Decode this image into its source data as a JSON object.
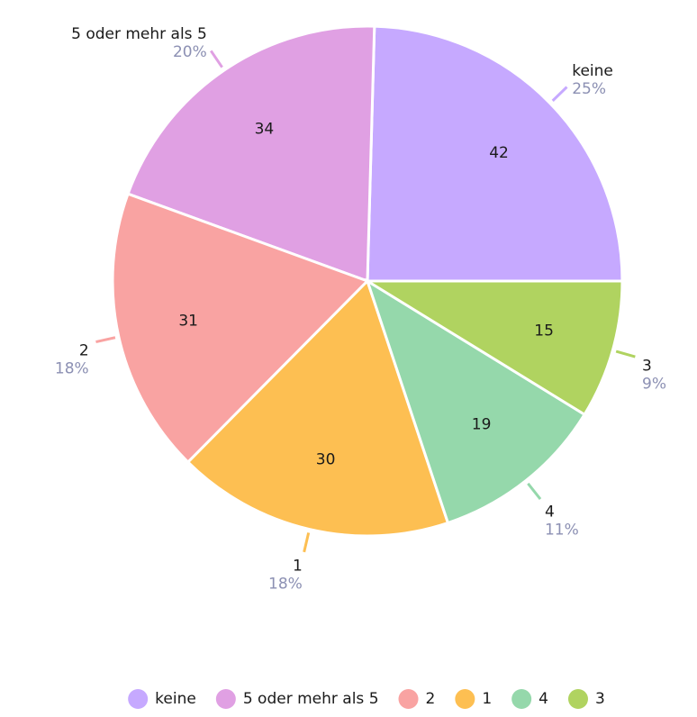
{
  "chart_data": {
    "type": "pie",
    "categories": [
      "keine",
      "5 oder mehr als 5",
      "2",
      "1",
      "4",
      "3"
    ],
    "values": [
      42,
      34,
      31,
      30,
      19,
      15
    ],
    "percent_labels": [
      "25%",
      "20%",
      "18%",
      "18%",
      "11%",
      "9%"
    ],
    "colors": [
      "#c6a9ff",
      "#e0a0e3",
      "#f9a3a2",
      "#fdbf52",
      "#95d8ab",
      "#b0d360"
    ],
    "legend": "bottom"
  }
}
